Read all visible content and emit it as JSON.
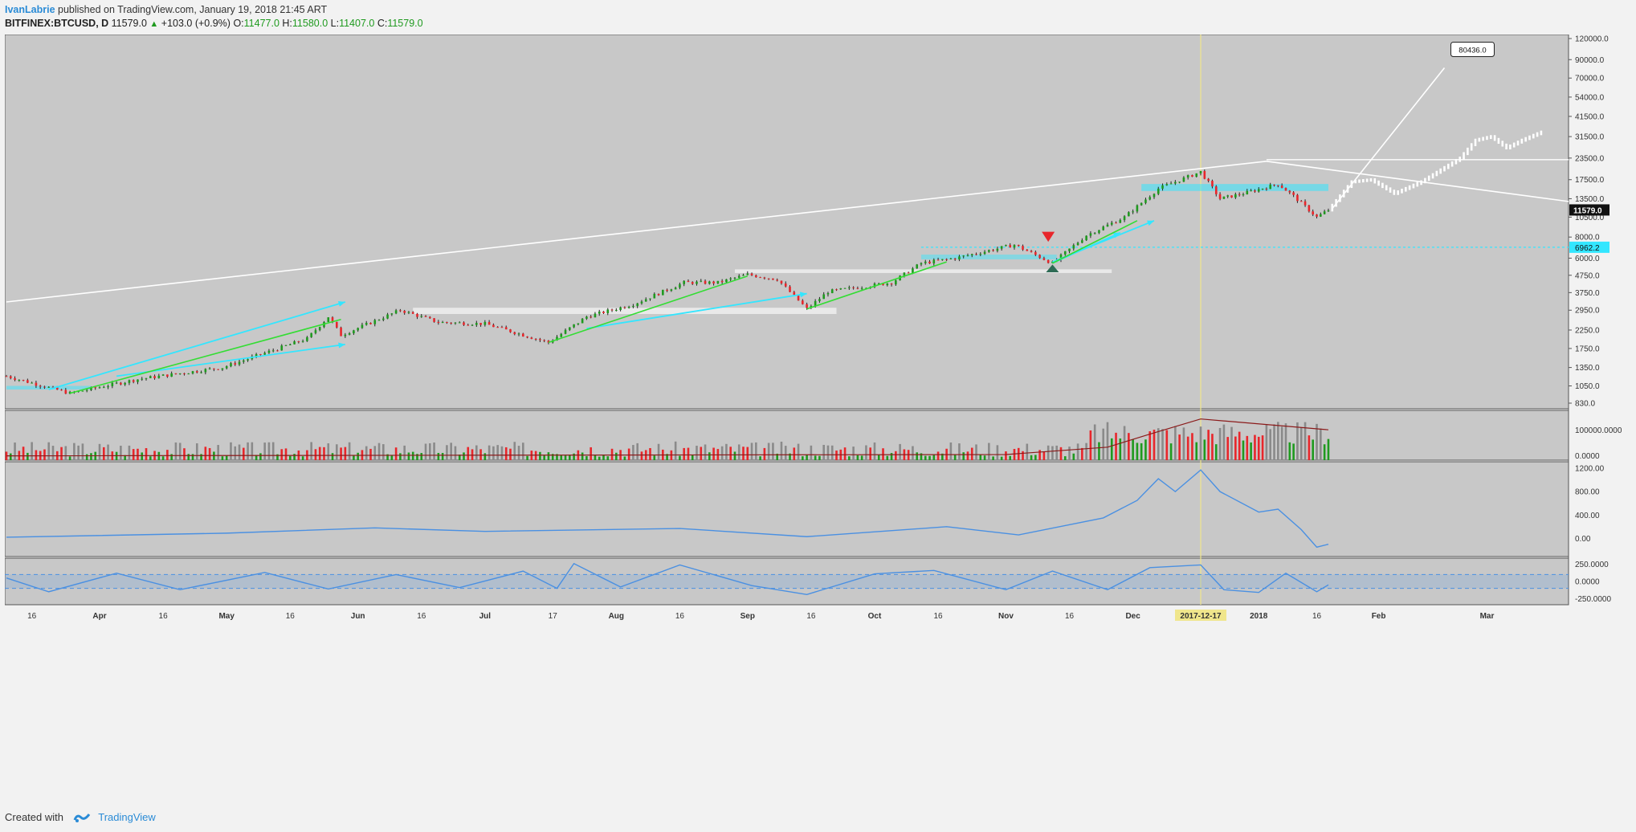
{
  "header": {
    "author": "IvanLabrie",
    "published": "published on TradingView.com, January 19, 2018 21:45 ART",
    "symbol": "BITFINEX:BTCUSD, D",
    "last": "11579.0",
    "change": "+103.0 (+0.9%)",
    "o_label": "O:",
    "o_value": "11477.0",
    "h_label": "H:",
    "h_value": "11580.0",
    "l_label": "L:",
    "l_value": "11407.0",
    "c_label": "C:",
    "c_value": "11579.0"
  },
  "footer": {
    "created": "Created with",
    "brand": "TradingView"
  },
  "colors": {
    "bg": "#c8c8c8",
    "candle_up": "#1f9a1f",
    "candle_down": "#e8262b",
    "cyan": "#33e6ff",
    "green": "#33dd33",
    "yellow": "#f5f55a",
    "white": "#ffffff",
    "osc": "#4a90e2",
    "vol_ma": "#8b1a1a",
    "highlight": "#f0e68c"
  },
  "chart_data": {
    "type": "candlestick",
    "symbol": "BITFINEX:BTCUSD",
    "timeframe": "D",
    "y_scale": "log",
    "price_ticks": [
      "120000.0",
      "90000.0",
      "70000.0",
      "54000.0",
      "41500.0",
      "31500.0",
      "23500.0",
      "17500.0",
      "13500.0",
      "10500.0",
      "8000.0",
      "6000.0",
      "4750.0",
      "3750.0",
      "2950.0",
      "2250.0",
      "1750.0",
      "1350.0",
      "1050.0",
      "830.0"
    ],
    "x_ticks": [
      "16",
      "Apr",
      "16",
      "May",
      "16",
      "Jun",
      "16",
      "Jul",
      "17",
      "Aug",
      "16",
      "Sep",
      "16",
      "Oct",
      "16",
      "Nov",
      "16",
      "Dec",
      "2017-12-17",
      "2018",
      "16",
      "Feb",
      "Mar"
    ],
    "x_ticks_dates": [
      "2017-03-16",
      "2017-04-01",
      "2017-04-16",
      "2017-05-01",
      "2017-05-16",
      "2017-06-01",
      "2017-06-16",
      "2017-07-01",
      "2017-07-17",
      "2017-08-01",
      "2017-08-16",
      "2017-09-01",
      "2017-09-16",
      "2017-10-01",
      "2017-10-16",
      "2017-11-01",
      "2017-11-16",
      "2017-12-01",
      "2017-12-17",
      "2018-01-01",
      "2018-01-16",
      "2018-02-01",
      "2018-03-01"
    ],
    "price_path": [
      [
        "2017-03-10",
        1200
      ],
      [
        "2017-03-25",
        950
      ],
      [
        "2017-04-10",
        1150
      ],
      [
        "2017-04-30",
        1350
      ],
      [
        "2017-05-20",
        2000
      ],
      [
        "2017-05-25",
        2700
      ],
      [
        "2017-05-28",
        2100
      ],
      [
        "2017-06-11",
        2950
      ],
      [
        "2017-06-20",
        2500
      ],
      [
        "2017-07-01",
        2450
      ],
      [
        "2017-07-16",
        1900
      ],
      [
        "2017-07-25",
        2700
      ],
      [
        "2017-08-05",
        3200
      ],
      [
        "2017-08-17",
        4300
      ],
      [
        "2017-08-25",
        4300
      ],
      [
        "2017-09-01",
        4800
      ],
      [
        "2017-09-08",
        4500
      ],
      [
        "2017-09-15",
        3000
      ],
      [
        "2017-09-20",
        3800
      ],
      [
        "2017-10-05",
        4300
      ],
      [
        "2017-10-12",
        5600
      ],
      [
        "2017-10-20",
        6000
      ],
      [
        "2017-11-03",
        7200
      ],
      [
        "2017-11-12",
        5600
      ],
      [
        "2017-11-20",
        8200
      ],
      [
        "2017-11-29",
        10500
      ],
      [
        "2017-12-07",
        15500
      ],
      [
        "2017-12-17",
        19500
      ],
      [
        "2017-12-22",
        13500
      ],
      [
        "2017-12-28",
        14500
      ],
      [
        "2018-01-06",
        16500
      ],
      [
        "2018-01-10",
        14000
      ],
      [
        "2018-01-16",
        10500
      ],
      [
        "2018-01-19",
        11579
      ]
    ],
    "projection_path": [
      [
        "2018-01-19",
        11579
      ],
      [
        "2018-01-25",
        17000
      ],
      [
        "2018-01-30",
        17500
      ],
      [
        "2018-02-05",
        14500
      ],
      [
        "2018-02-12",
        17000
      ],
      [
        "2018-02-17",
        20000
      ],
      [
        "2018-02-22",
        23500
      ],
      [
        "2018-02-26",
        30000
      ],
      [
        "2018-03-02",
        31500
      ],
      [
        "2018-03-06",
        27000
      ],
      [
        "2018-03-10",
        30000
      ],
      [
        "2018-03-15",
        33500
      ]
    ],
    "target_label": "80436.0",
    "target_point": [
      "2018-02-18",
      80436
    ],
    "current_price_label": "11579.0",
    "level_label": "6962.2",
    "level_value": 6962.2,
    "highlight_date": "2017-12-17",
    "volume_panel": {
      "ticks": [
        "100000.0000",
        "0.0000"
      ]
    },
    "oscillator1": {
      "ticks": [
        "1200.00",
        "800.00",
        "400.00",
        "0.00"
      ],
      "path": [
        [
          "2017-03-10",
          20
        ],
        [
          "2017-05-01",
          90
        ],
        [
          "2017-06-05",
          180
        ],
        [
          "2017-07-01",
          120
        ],
        [
          "2017-08-16",
          170
        ],
        [
          "2017-09-15",
          30
        ],
        [
          "2017-10-18",
          200
        ],
        [
          "2017-11-04",
          60
        ],
        [
          "2017-11-24",
          350
        ],
        [
          "2017-12-02",
          650
        ],
        [
          "2017-12-07",
          1020
        ],
        [
          "2017-12-11",
          800
        ],
        [
          "2017-12-17",
          1170
        ],
        [
          "2017-12-22",
          800
        ],
        [
          "2018-01-01",
          450
        ],
        [
          "2018-01-06",
          500
        ],
        [
          "2018-01-12",
          150
        ],
        [
          "2018-01-16",
          -150
        ],
        [
          "2018-01-19",
          -100
        ]
      ]
    },
    "oscillator2": {
      "ticks": [
        "250.0000",
        "0.0000",
        "-250.0000"
      ],
      "band": [
        100,
        -100
      ],
      "path": [
        [
          "2017-03-10",
          50
        ],
        [
          "2017-03-20",
          -150
        ],
        [
          "2017-04-05",
          120
        ],
        [
          "2017-04-20",
          -120
        ],
        [
          "2017-05-10",
          130
        ],
        [
          "2017-05-25",
          -110
        ],
        [
          "2017-06-10",
          100
        ],
        [
          "2017-06-25",
          -90
        ],
        [
          "2017-07-10",
          150
        ],
        [
          "2017-07-18",
          -100
        ],
        [
          "2017-07-22",
          260
        ],
        [
          "2017-08-02",
          -80
        ],
        [
          "2017-08-16",
          240
        ],
        [
          "2017-09-02",
          -60
        ],
        [
          "2017-09-15",
          -190
        ],
        [
          "2017-10-01",
          110
        ],
        [
          "2017-10-15",
          160
        ],
        [
          "2017-11-01",
          -120
        ],
        [
          "2017-11-12",
          150
        ],
        [
          "2017-11-25",
          -120
        ],
        [
          "2017-12-05",
          200
        ],
        [
          "2017-12-17",
          240
        ],
        [
          "2017-12-23",
          -120
        ],
        [
          "2018-01-01",
          -160
        ],
        [
          "2018-01-08",
          120
        ],
        [
          "2018-01-16",
          -150
        ],
        [
          "2018-01-19",
          -50
        ]
      ]
    }
  }
}
